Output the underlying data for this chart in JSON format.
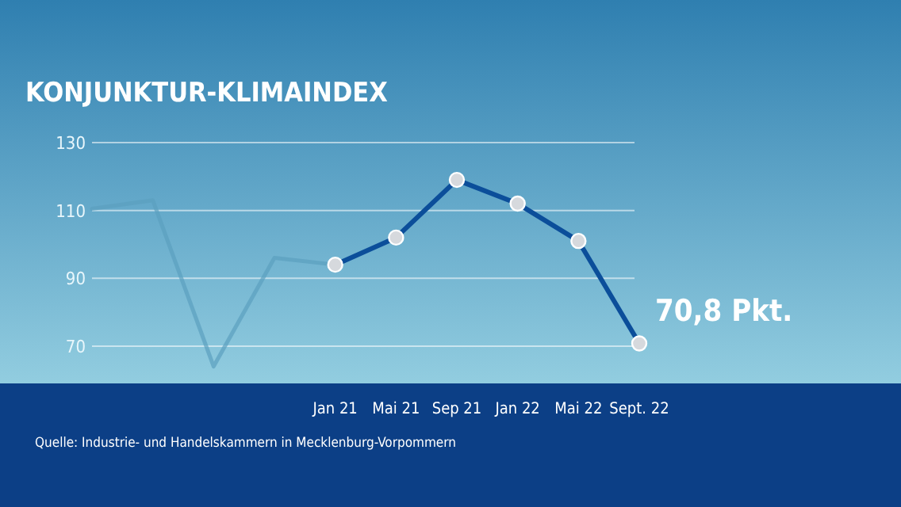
{
  "chart_data": {
    "type": "line",
    "title": "KONJUNKTUR-KLIMAINDEX",
    "categories": [
      null,
      null,
      null,
      null,
      "Jan 21",
      "Mai 21",
      "Sep 21",
      "Jan 22",
      "Mai 22",
      "Sept. 22"
    ],
    "series": [
      {
        "color": "#5b9fbf",
        "marker": "none",
        "values": [
          110.5,
          113,
          64,
          96,
          94,
          null,
          null,
          null,
          null,
          null
        ]
      },
      {
        "color": "#0b4e9a",
        "marker": "circle",
        "values": [
          null,
          null,
          null,
          null,
          94,
          102,
          119,
          112,
          101,
          70.8
        ],
        "value_labels": [
          null,
          null,
          null,
          null,
          null,
          null,
          null,
          null,
          null,
          "70,8 Pkt."
        ]
      }
    ],
    "ylim": [
      59,
      130
    ],
    "yticks": [
      70,
      90,
      110,
      130
    ],
    "grid": "y",
    "annotations": [
      "Quelle: Industrie- und Handelskammern in Mecklenburg-Vorpommern"
    ]
  }
}
